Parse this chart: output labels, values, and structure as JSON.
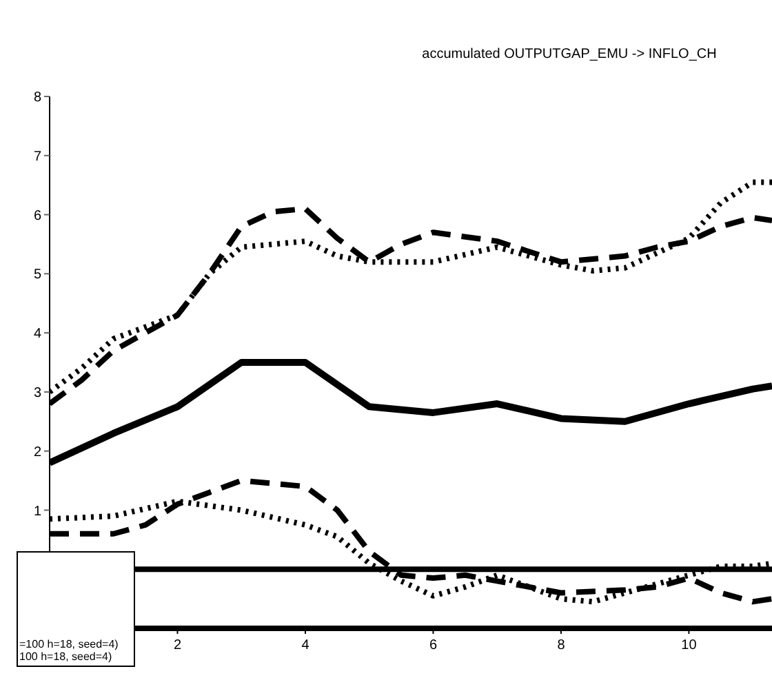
{
  "chart_data": {
    "type": "line",
    "title": "accumulated OUTPUTGAP_EMU -> INFLO_CH",
    "xlim": [
      0,
      11.3
    ],
    "ylim": [
      -1,
      8
    ],
    "xticks": [
      2,
      4,
      6,
      8,
      10
    ],
    "yticks": [
      1,
      2,
      3,
      4,
      5,
      6,
      7,
      8
    ],
    "grid": false,
    "marker": "none",
    "series": [
      {
        "color": "#000000",
        "line_style": "solid",
        "x": [
          0,
          1,
          2,
          3,
          4,
          5,
          6,
          7,
          8,
          9,
          10,
          11,
          11.3
        ],
        "values": [
          1.8,
          2.3,
          2.75,
          3.5,
          3.5,
          2.75,
          2.65,
          2.8,
          2.55,
          2.5,
          2.8,
          3.05,
          3.1
        ]
      },
      {
        "color": "#000000",
        "line_style": "dotted",
        "x": [
          0,
          0.5,
          1,
          1.5,
          2,
          2.5,
          3,
          4,
          4.5,
          5,
          6,
          7,
          8,
          8.5,
          9,
          10,
          10.5,
          11,
          11.3
        ],
        "values": [
          3.0,
          3.4,
          3.9,
          4.1,
          4.3,
          5.0,
          5.45,
          5.55,
          5.3,
          5.2,
          5.2,
          5.45,
          5.15,
          5.05,
          5.1,
          5.6,
          6.2,
          6.55,
          6.55
        ]
      },
      {
        "color": "#000000",
        "line_style": "dashed",
        "x": [
          0,
          0.5,
          1,
          1.5,
          2,
          2.5,
          3,
          3.5,
          4,
          4.5,
          5,
          5.5,
          6,
          7,
          8,
          9,
          9.5,
          10,
          10.5,
          11,
          11.3
        ],
        "values": [
          2.8,
          3.2,
          3.7,
          4.0,
          4.3,
          5.0,
          5.8,
          6.05,
          6.1,
          5.6,
          5.2,
          5.5,
          5.7,
          5.55,
          5.2,
          5.3,
          5.45,
          5.55,
          5.8,
          5.95,
          5.9
        ]
      },
      {
        "color": "#000000",
        "line_style": "dotted",
        "x": [
          0,
          1,
          2,
          3,
          4,
          4.5,
          5,
          5.5,
          6,
          6.5,
          7,
          8,
          8.5,
          9,
          10,
          10.5,
          11,
          11.3
        ],
        "values": [
          0.85,
          0.9,
          1.15,
          1.0,
          0.75,
          0.55,
          0.1,
          -0.2,
          -0.45,
          -0.3,
          -0.1,
          -0.5,
          -0.55,
          -0.4,
          -0.1,
          0.05,
          0.05,
          0.1
        ]
      },
      {
        "color": "#000000",
        "line_style": "dashed",
        "x": [
          0,
          1,
          1.5,
          2,
          2.5,
          3,
          4,
          4.5,
          5,
          5.5,
          6,
          6.5,
          7,
          8,
          9,
          9.5,
          10,
          10.5,
          11,
          11.3
        ],
        "values": [
          0.6,
          0.6,
          0.75,
          1.1,
          1.3,
          1.5,
          1.4,
          1.0,
          0.3,
          -0.1,
          -0.15,
          -0.1,
          -0.2,
          -0.4,
          -0.35,
          -0.3,
          -0.15,
          -0.4,
          -0.55,
          -0.5
        ]
      }
    ],
    "ref_lines": [
      {
        "axis": "y",
        "value": 0,
        "color": "#000000"
      }
    ],
    "annotations": [
      "=100 h=18, seed=4)",
      "100 h=18, seed=4)"
    ]
  }
}
